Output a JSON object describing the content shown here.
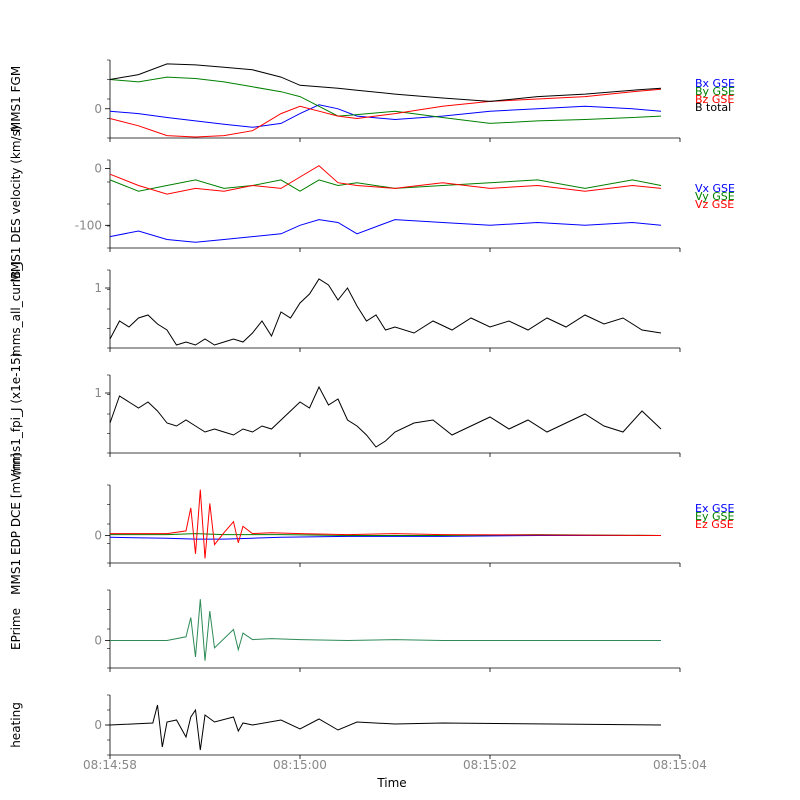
{
  "chart_data": {
    "type": "line",
    "xlabel": "Time",
    "x_range": [
      "08:14:58",
      "08:15:04"
    ],
    "x_ticks": [
      "08:14:58",
      "08:15:00",
      "08:15:02",
      "08:15:04"
    ],
    "panels": [
      {
        "ylabel": "MMS1 FGM",
        "yticks": [
          {
            "value": 0,
            "label": "0"
          }
        ],
        "ylim": [
          -60,
          100
        ],
        "series": [
          {
            "name": "Bx GSE",
            "color": "#0000ff",
            "x": [
              0,
              0.3,
              0.6,
              0.9,
              1.2,
              1.5,
              1.8,
              2.0,
              2.2,
              2.4,
              2.6,
              3.0,
              3.5,
              4.0,
              4.5,
              5.0,
              5.5,
              5.8
            ],
            "y": [
              -5,
              -10,
              -18,
              -25,
              -32,
              -38,
              -30,
              -10,
              8,
              0,
              -15,
              -22,
              -15,
              -5,
              0,
              5,
              0,
              -5
            ]
          },
          {
            "name": "By GSE",
            "color": "#008000",
            "x": [
              0,
              0.3,
              0.6,
              0.9,
              1.2,
              1.5,
              1.8,
              2.0,
              2.2,
              2.4,
              2.6,
              3.0,
              3.5,
              4.0,
              4.5,
              5.0,
              5.5,
              5.8
            ],
            "y": [
              60,
              55,
              65,
              62,
              55,
              45,
              35,
              25,
              5,
              -15,
              -12,
              -5,
              -18,
              -30,
              -25,
              -22,
              -18,
              -15
            ]
          },
          {
            "name": "Bz GSE",
            "color": "#ff0000",
            "x": [
              0,
              0.3,
              0.6,
              0.9,
              1.2,
              1.5,
              1.8,
              2.0,
              2.2,
              2.4,
              2.6,
              3.0,
              3.5,
              4.0,
              4.5,
              5.0,
              5.5,
              5.8
            ],
            "y": [
              -20,
              -35,
              -55,
              -58,
              -55,
              -45,
              -10,
              5,
              -5,
              -15,
              -20,
              -10,
              5,
              15,
              20,
              25,
              35,
              40
            ]
          },
          {
            "name": "B total",
            "color": "#000000",
            "x": [
              0,
              0.3,
              0.6,
              0.9,
              1.2,
              1.5,
              1.8,
              2.0,
              2.2,
              2.4,
              2.6,
              3.0,
              3.5,
              4.0,
              4.5,
              5.0,
              5.5,
              5.8
            ],
            "y": [
              60,
              70,
              92,
              90,
              85,
              80,
              65,
              48,
              45,
              42,
              38,
              30,
              22,
              15,
              25,
              30,
              38,
              42
            ]
          }
        ]
      },
      {
        "ylabel": "MMS1 DES velocity (km/s)",
        "yticks": [
          {
            "value": 0,
            "label": "0"
          },
          {
            "value": -100,
            "label": "-100"
          }
        ],
        "ylim": [
          -140,
          15
        ],
        "series": [
          {
            "name": "Vx GSE",
            "color": "#0000ff",
            "x": [
              0,
              0.3,
              0.6,
              0.9,
              1.2,
              1.5,
              1.8,
              2.0,
              2.2,
              2.4,
              2.6,
              3.0,
              3.5,
              4.0,
              4.5,
              5.0,
              5.5,
              5.8
            ],
            "y": [
              -120,
              -110,
              -125,
              -130,
              -125,
              -120,
              -115,
              -100,
              -90,
              -95,
              -115,
              -90,
              -95,
              -100,
              -95,
              -100,
              -95,
              -100
            ]
          },
          {
            "name": "Vy GSE",
            "color": "#008000",
            "x": [
              0,
              0.3,
              0.6,
              0.9,
              1.2,
              1.5,
              1.8,
              2.0,
              2.2,
              2.4,
              2.6,
              3.0,
              3.5,
              4.0,
              4.5,
              5.0,
              5.5,
              5.8
            ],
            "y": [
              -20,
              -40,
              -30,
              -20,
              -35,
              -30,
              -20,
              -40,
              -20,
              -30,
              -25,
              -35,
              -30,
              -25,
              -20,
              -35,
              -20,
              -30
            ]
          },
          {
            "name": "Vz GSE",
            "color": "#ff0000",
            "x": [
              0,
              0.3,
              0.6,
              0.9,
              1.2,
              1.5,
              1.8,
              2.0,
              2.2,
              2.4,
              2.6,
              3.0,
              3.5,
              4.0,
              4.5,
              5.0,
              5.5,
              5.8
            ],
            "y": [
              -10,
              -30,
              -45,
              -35,
              -40,
              -30,
              -35,
              -15,
              5,
              -25,
              -30,
              -35,
              -25,
              -35,
              -30,
              -40,
              -30,
              -35
            ]
          }
        ]
      },
      {
        "ylabel": "mms_all_curlB_J",
        "yticks": [
          {
            "value": 1,
            "label": "1"
          }
        ],
        "ylim": [
          0,
          1.3
        ],
        "series": [
          {
            "name": "",
            "color": "#000000",
            "x": [
              0,
              0.1,
              0.2,
              0.3,
              0.4,
              0.5,
              0.6,
              0.7,
              0.8,
              0.9,
              1.0,
              1.1,
              1.2,
              1.3,
              1.4,
              1.5,
              1.6,
              1.7,
              1.8,
              1.9,
              2.0,
              2.1,
              2.2,
              2.3,
              2.4,
              2.5,
              2.6,
              2.7,
              2.8,
              2.9,
              3.0,
              3.2,
              3.4,
              3.6,
              3.8,
              4.0,
              4.2,
              4.4,
              4.6,
              4.8,
              5.0,
              5.2,
              5.4,
              5.6,
              5.8
            ],
            "y": [
              0.15,
              0.45,
              0.35,
              0.5,
              0.55,
              0.4,
              0.3,
              0.05,
              0.1,
              0.05,
              0.15,
              0.05,
              0.1,
              0.15,
              0.1,
              0.25,
              0.45,
              0.2,
              0.6,
              0.5,
              0.75,
              0.9,
              1.15,
              1.05,
              0.8,
              1.0,
              0.7,
              0.45,
              0.55,
              0.3,
              0.35,
              0.25,
              0.45,
              0.3,
              0.5,
              0.35,
              0.45,
              0.3,
              0.5,
              0.35,
              0.55,
              0.4,
              0.5,
              0.3,
              0.25
            ]
          }
        ]
      },
      {
        "ylabel": "mms1_fpi_J (x1e-15)",
        "yticks": [
          {
            "value": 1,
            "label": "1"
          }
        ],
        "ylim": [
          0,
          1.3
        ],
        "series": [
          {
            "name": "",
            "color": "#000000",
            "x": [
              0,
              0.1,
              0.2,
              0.3,
              0.4,
              0.5,
              0.6,
              0.7,
              0.8,
              0.9,
              1.0,
              1.1,
              1.2,
              1.3,
              1.4,
              1.5,
              1.6,
              1.7,
              1.8,
              1.9,
              2.0,
              2.1,
              2.2,
              2.3,
              2.4,
              2.5,
              2.6,
              2.7,
              2.8,
              2.9,
              3.0,
              3.2,
              3.4,
              3.6,
              3.8,
              4.0,
              4.2,
              4.4,
              4.6,
              4.8,
              5.0,
              5.2,
              5.4,
              5.6,
              5.8
            ],
            "y": [
              0.5,
              0.95,
              0.85,
              0.75,
              0.85,
              0.7,
              0.5,
              0.45,
              0.55,
              0.45,
              0.35,
              0.4,
              0.35,
              0.3,
              0.4,
              0.35,
              0.45,
              0.4,
              0.55,
              0.7,
              0.85,
              0.75,
              1.1,
              0.8,
              0.9,
              0.55,
              0.45,
              0.3,
              0.1,
              0.2,
              0.35,
              0.5,
              0.55,
              0.3,
              0.45,
              0.6,
              0.4,
              0.55,
              0.35,
              0.5,
              0.65,
              0.45,
              0.35,
              0.7,
              0.4
            ]
          }
        ]
      },
      {
        "ylabel": "MMS1 EDP DCE [mV/m]",
        "yticks": [
          {
            "value": 0,
            "label": "0"
          }
        ],
        "ylim": [
          -30,
          55
        ],
        "series": [
          {
            "name": "Ex GSE",
            "color": "#0000ff",
            "x": [
              0,
              0.6,
              0.9,
              1.2,
              1.5,
              1.8,
              2.5,
              3.5,
              4.5,
              5.8
            ],
            "y": [
              -2,
              -3,
              -4,
              -4,
              -3,
              -2,
              -1,
              -1,
              0,
              0
            ]
          },
          {
            "name": "Ey GSE",
            "color": "#008000",
            "x": [
              0,
              0.6,
              0.9,
              1.2,
              1.5,
              1.8,
              2.5,
              3.5,
              4.5,
              5.8
            ],
            "y": [
              1,
              1,
              2,
              1,
              1,
              1,
              0,
              0,
              1,
              0
            ]
          },
          {
            "name": "Ez GSE",
            "color": "#ff0000",
            "x": [
              0,
              0.6,
              0.8,
              0.85,
              0.9,
              0.95,
              1.0,
              1.05,
              1.1,
              1.2,
              1.3,
              1.35,
              1.4,
              1.5,
              1.7,
              2.0,
              2.5,
              3.0,
              3.5,
              5.8
            ],
            "y": [
              2,
              2,
              5,
              30,
              -20,
              50,
              -25,
              35,
              -10,
              3,
              15,
              -8,
              10,
              2,
              3,
              2,
              1,
              2,
              1,
              0
            ]
          }
        ]
      },
      {
        "ylabel": "EPrime",
        "yticks": [
          {
            "value": 0,
            "label": "0"
          }
        ],
        "ylim": [
          -30,
          55
        ],
        "series": [
          {
            "name": "",
            "color": "#2e8b57",
            "x": [
              0,
              0.6,
              0.8,
              0.85,
              0.9,
              0.95,
              1.0,
              1.05,
              1.1,
              1.2,
              1.3,
              1.35,
              1.4,
              1.5,
              1.7,
              2.0,
              2.5,
              3.0,
              3.5,
              5.8
            ],
            "y": [
              0,
              0,
              4,
              25,
              -18,
              45,
              -22,
              32,
              -8,
              2,
              12,
              -10,
              8,
              1,
              2,
              1,
              0,
              1,
              0,
              0
            ]
          }
        ]
      },
      {
        "ylabel": "heating",
        "yticks": [
          {
            "value": 0,
            "label": "0"
          }
        ],
        "ylim": [
          -30,
          30
        ],
        "series": [
          {
            "name": "",
            "color": "#000000",
            "x": [
              0,
              0.45,
              0.5,
              0.55,
              0.6,
              0.7,
              0.8,
              0.85,
              0.9,
              0.95,
              1.0,
              1.1,
              1.3,
              1.35,
              1.4,
              1.5,
              1.8,
              2.0,
              2.2,
              2.4,
              2.6,
              3.0,
              3.5,
              5.8
            ],
            "y": [
              0,
              2,
              20,
              -22,
              3,
              5,
              -12,
              8,
              15,
              -25,
              10,
              3,
              8,
              -6,
              2,
              0,
              5,
              -4,
              6,
              -5,
              3,
              1,
              2,
              0
            ]
          }
        ]
      }
    ]
  }
}
